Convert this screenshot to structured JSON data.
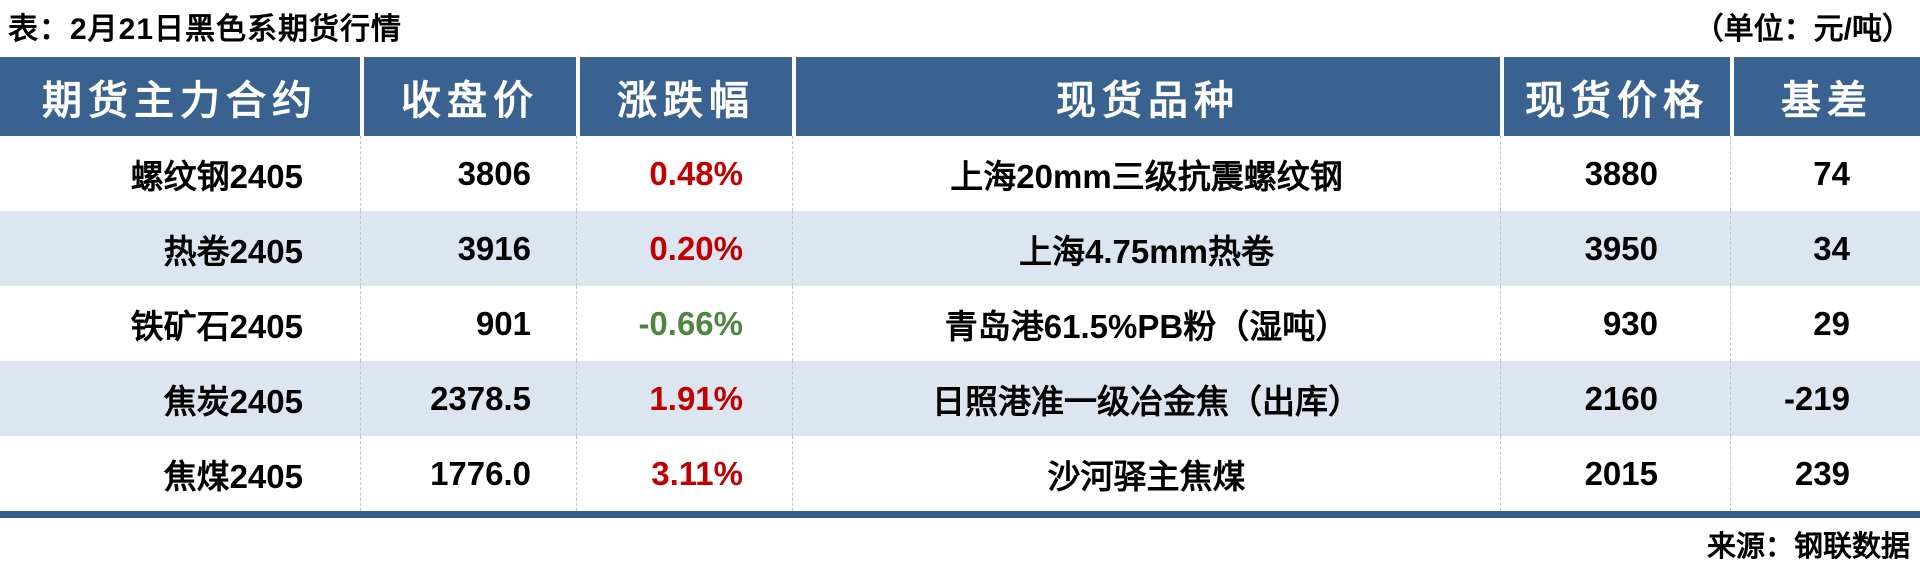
{
  "colors": {
    "header_bg": "#3A6291",
    "alt_row_bg": "#DCE6F1",
    "up_red": "#C00000",
    "down_green": "#4E8540",
    "bottom_bar": "#325E8D"
  },
  "chart_data": {
    "type": "table",
    "title": "表：2月21日黑色系期货行情",
    "unit": "（单位：元/吨）",
    "source": "来源：钢联数据",
    "columns": [
      "期货主力合约",
      "收盘价",
      "涨跌幅",
      "现货品种",
      "现货价格",
      "基差"
    ],
    "rows": [
      {
        "contract": "螺纹钢2405",
        "close": "3806",
        "change": "0.48%",
        "direction": "up",
        "spot": "上海20mm三级抗震螺纹钢",
        "spot_price": "3880",
        "basis": "74"
      },
      {
        "contract": "热卷2405",
        "close": "3916",
        "change": "0.20%",
        "direction": "up",
        "spot": "上海4.75mm热卷",
        "spot_price": "3950",
        "basis": "34"
      },
      {
        "contract": "铁矿石2405",
        "close": "901",
        "change": "-0.66%",
        "direction": "down",
        "spot": "青岛港61.5%PB粉（湿吨）",
        "spot_price": "930",
        "basis": "29"
      },
      {
        "contract": "焦炭2405",
        "close": "2378.5",
        "change": "1.91%",
        "direction": "up",
        "spot": "日照港准一级冶金焦（出库）",
        "spot_price": "2160",
        "basis": "-219"
      },
      {
        "contract": "焦煤2405",
        "close": "1776.0",
        "change": "3.11%",
        "direction": "up",
        "spot": "沙河驿主焦煤",
        "spot_price": "2015",
        "basis": "239"
      }
    ]
  }
}
